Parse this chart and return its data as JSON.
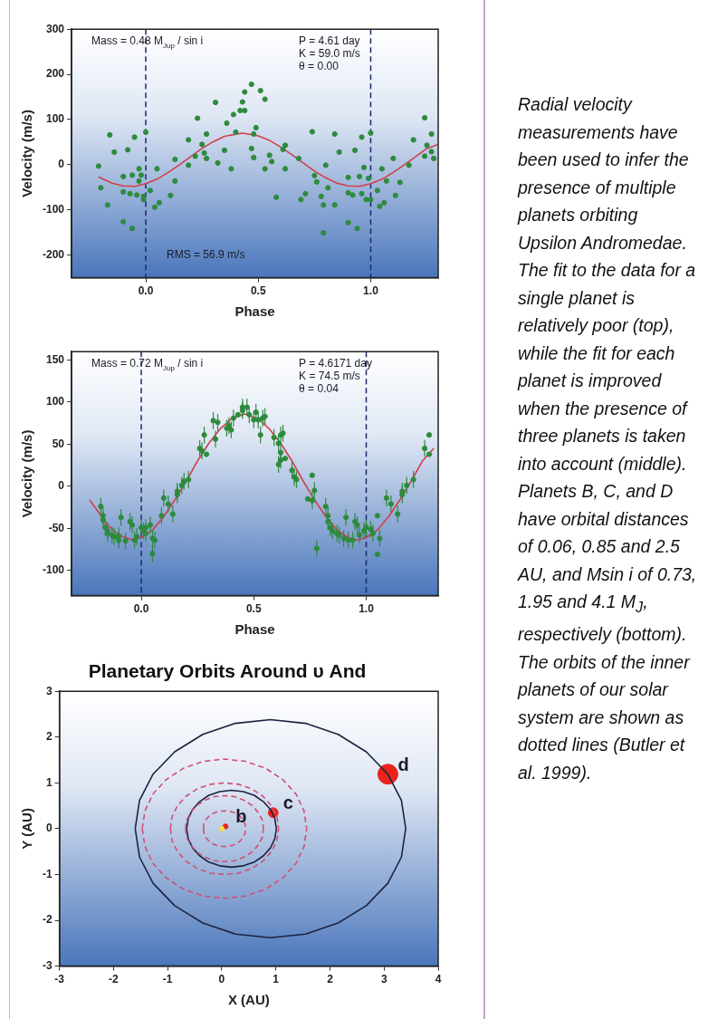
{
  "chart_data": [
    {
      "type": "scatter",
      "xlabel": "Phase",
      "ylabel": "Velocity (m/s)",
      "annotations": [
        "Mass = 0.48 M$_{Jup}$ / sin i",
        "P = 4.61 day",
        "K = 59.0 m/s",
        "θ = 0.00",
        "RMS = 56.9 m/s"
      ],
      "xlim": [
        -0.33,
        1.3
      ],
      "ylim": [
        -250,
        300
      ],
      "xticks": [
        {
          "value": 0,
          "label": "0.0"
        },
        {
          "value": 0.5,
          "label": "0.5"
        },
        {
          "value": 1,
          "label": "1.0"
        }
      ],
      "yticks": [
        -200,
        -100,
        0,
        100,
        200,
        300
      ],
      "grid": false,
      "legend": false,
      "ref_lines": [
        {
          "axis": "x",
          "value": 0,
          "color": "#1a2a6c",
          "line_style": "dashed"
        },
        {
          "axis": "x",
          "value": 1,
          "color": "#1a2a6c",
          "line_style": "dashed"
        }
      ],
      "series": [
        {
          "type": "scatter",
          "marker": "circle",
          "color": "#2e8b3e",
          "x": [
            -0.21,
            -0.2,
            -0.17,
            -0.16,
            -0.14,
            -0.1,
            -0.1,
            -0.1,
            -0.08,
            -0.07,
            -0.06,
            -0.05,
            -0.06,
            -0.04,
            -0.03,
            -0.03,
            -0.02,
            -0.01,
            0,
            -0.01,
            0.02,
            0.04,
            0.05,
            0.06,
            0.11,
            0.13,
            0.13,
            0.19,
            0.19,
            0.22,
            0.23,
            0.25,
            0.26,
            0.27,
            0.27,
            0.31,
            0.32,
            0.35,
            0.36,
            0.38,
            0.39,
            0.4,
            0.42,
            0.43,
            0.44,
            0.44,
            0.47,
            0.47,
            0.48,
            0.48,
            0.49,
            0.51,
            0.53,
            0.53,
            0.55,
            0.56,
            0.58,
            0.61,
            0.62,
            0.62,
            0.68,
            0.69,
            0.71,
            0.74,
            0.75,
            0.76,
            0.78,
            0.79,
            0.79,
            0.8,
            0.81,
            0.84,
            0.84,
            0.86,
            0.9,
            0.9,
            0.9,
            0.92,
            0.93,
            0.94,
            0.95,
            0.96,
            0.96,
            0.97,
            0.98,
            0.99,
            1.0,
            1.0,
            1.03,
            1.04,
            1.05,
            1.06,
            1.07,
            1.1,
            1.11,
            1.13,
            1.17,
            1.19,
            1.24,
            1.24,
            1.25,
            1.27,
            1.27,
            1.28
          ],
          "values": [
            -3,
            -51,
            -89,
            66,
            28,
            -26,
            -60,
            -126,
            33,
            -64,
            -141,
            61,
            -23,
            -67,
            -9,
            -36,
            -23,
            -70,
            72,
            -77,
            -57,
            -94,
            -9,
            -84,
            -68,
            12,
            -36,
            55,
            -1,
            19,
            103,
            45,
            26,
            68,
            14,
            138,
            4,
            32,
            92,
            -9,
            111,
            72,
            120,
            139,
            161,
            120,
            178,
            36,
            16,
            68,
            82,
            164,
            145,
            -9,
            21,
            7,
            -72,
            34,
            43,
            -9,
            14,
            -77,
            -64,
            73,
            -24,
            -38,
            -70,
            -89,
            -151,
            -1,
            -51,
            -89,
            68,
            28,
            -128,
            -28,
            -62,
            -67,
            32,
            -141,
            -26,
            -64,
            61,
            -6,
            -77,
            -30,
            70,
            -77,
            -57,
            -92,
            -9,
            -84,
            -36,
            14,
            -68,
            -39,
            -1,
            55,
            104,
            19,
            43,
            68,
            29,
            14
          ]
        },
        {
          "type": "line",
          "marker": "none",
          "color": "#d0404a",
          "x": [
            -0.21,
            -0.15,
            -0.1,
            -0.05,
            0,
            0.05,
            0.1,
            0.15,
            0.2,
            0.25,
            0.3,
            0.35,
            0.43,
            0.5,
            0.55,
            0.6,
            0.65,
            0.7,
            0.75,
            0.8,
            0.85,
            0.9,
            0.95,
            1.0,
            1.05,
            1.1,
            1.15,
            1.2,
            1.25,
            1.3
          ],
          "values": [
            -27,
            -41,
            -47,
            -48,
            -42,
            -32,
            -17,
            0,
            18,
            36,
            51,
            63,
            70,
            64,
            54,
            39,
            22,
            4,
            -14,
            -29,
            -41,
            -47,
            -48,
            -42,
            -32,
            -17,
            0,
            18,
            36,
            45
          ]
        }
      ]
    },
    {
      "type": "scatter",
      "xlabel": "Phase",
      "ylabel": "Velocity (m/s)",
      "annotations": [
        "Mass = 0.72 M$_{Jup}$ / sin i",
        "P = 4.6171 day",
        "K = 74.5 m/s",
        "θ = 0.04"
      ],
      "xlim": [
        -0.31,
        1.32
      ],
      "ylim": [
        -130,
        160
      ],
      "xticks": [
        {
          "value": 0,
          "label": "0.0"
        },
        {
          "value": 0.5,
          "label": "0.5"
        },
        {
          "value": 1,
          "label": "1.0"
        }
      ],
      "yticks": [
        -100,
        -50,
        0,
        50,
        100,
        150
      ],
      "grid": false,
      "legend": false,
      "ref_lines": [
        {
          "axis": "x",
          "value": 0,
          "color": "#1a2a6c",
          "line_style": "dashed"
        },
        {
          "axis": "x",
          "value": 1,
          "color": "#1a2a6c",
          "line_style": "dashed"
        }
      ],
      "series": [
        {
          "type": "scatter",
          "marker": "circle",
          "color": "#2e8b3e",
          "x": [
            -0.18,
            -0.17,
            -0.17,
            -0.16,
            -0.15,
            -0.15,
            -0.13,
            -0.12,
            -0.1,
            -0.1,
            -0.09,
            -0.07,
            -0.05,
            -0.04,
            -0.03,
            -0.02,
            0,
            0.01,
            0.02,
            0.02,
            0.04,
            0.05,
            0.05,
            0.06,
            0.09,
            0.1,
            0.12,
            0.14,
            0.16,
            0.16,
            0.18,
            0.19,
            0.21,
            0.26,
            0.27,
            0.28,
            0.29,
            0.32,
            0.33,
            0.34,
            0.38,
            0.39,
            0.4,
            0.41,
            0.43,
            0.45,
            0.45,
            0.47,
            0.48,
            0.5,
            0.51,
            0.52,
            0.53,
            0.54,
            0.55,
            0.59,
            0.61,
            0.62,
            0.63,
            0.61,
            0.62,
            0.62,
            0.64,
            0.67,
            0.68,
            0.69,
            0.74,
            0.76,
            0.76,
            0.77,
            0.78,
            0.82,
            0.83,
            0.83,
            0.84,
            0.85,
            0.87,
            0.88,
            0.9,
            0.91,
            0.92,
            0.94,
            0.95,
            0.96,
            0.97,
            0.99,
            1.0,
            1.02,
            1.03,
            1.05,
            1.05,
            1.06,
            1.09,
            1.11,
            1.14,
            1.16,
            1.16,
            1.18,
            1.21,
            1.26,
            1.28,
            1.28
          ],
          "values": [
            -24,
            -35,
            -40,
            -49,
            -56,
            -53,
            -58,
            -60,
            -64,
            -59,
            -37,
            -65,
            -42,
            -46,
            -64,
            -60,
            -49,
            -53,
            -56,
            -49,
            -46,
            -80,
            -62,
            -64,
            -35,
            -14,
            -21,
            -33,
            -6,
            -10,
            1,
            6,
            8,
            45,
            42,
            61,
            38,
            78,
            56,
            76,
            69,
            72,
            67,
            81,
            85,
            94,
            90,
            94,
            85,
            79,
            88,
            79,
            61,
            81,
            83,
            58,
            51,
            61,
            63,
            26,
            40,
            31,
            33,
            19,
            11,
            8,
            -15,
            -17,
            13,
            -5,
            -74,
            -24,
            -35,
            -42,
            -49,
            -53,
            -56,
            -58,
            -62,
            -37,
            -64,
            -64,
            -42,
            -46,
            -58,
            -53,
            -49,
            -51,
            -56,
            -81,
            -35,
            -62,
            -14,
            -21,
            -33,
            -6,
            -10,
            1,
            8,
            45,
            61,
            38
          ],
          "errors": [
            10,
            10,
            10,
            10,
            10,
            10,
            10,
            10,
            10,
            10,
            10,
            10,
            10,
            10,
            10,
            10,
            10,
            10,
            10,
            10,
            10,
            10,
            10,
            10,
            10,
            10,
            10,
            10,
            10,
            10,
            10,
            10,
            10,
            10,
            10,
            10,
            null,
            10,
            10,
            10,
            10,
            10,
            10,
            10,
            null,
            10,
            10,
            10,
            10,
            10,
            10,
            10,
            10,
            10,
            10,
            10,
            10,
            10,
            10,
            10,
            10,
            10,
            null,
            10,
            10,
            10,
            null,
            10,
            null,
            10,
            10,
            10,
            10,
            10,
            10,
            10,
            10,
            10,
            10,
            10,
            10,
            10,
            10,
            10,
            10,
            10,
            10,
            10,
            10,
            null,
            null,
            10,
            10,
            10,
            10,
            10,
            10,
            10,
            10,
            10,
            null,
            null
          ]
        },
        {
          "type": "line",
          "marker": "none",
          "color": "#d0404a",
          "x": [
            -0.23,
            -0.15,
            -0.1,
            -0.04,
            0,
            0.05,
            0.1,
            0.15,
            0.2,
            0.25,
            0.3,
            0.35,
            0.4,
            0.46,
            0.52,
            0.57,
            0.62,
            0.67,
            0.72,
            0.77,
            0.82,
            0.87,
            0.92,
            0.96,
            1.0,
            1.05,
            1.1,
            1.15,
            1.2,
            1.25,
            1.3
          ],
          "values": [
            -16,
            -46,
            -58,
            -64,
            -61,
            -52,
            -36,
            -16,
            6,
            30,
            51,
            68,
            80,
            86,
            80,
            68,
            51,
            30,
            6,
            -16,
            -36,
            -52,
            -61,
            -64,
            -61,
            -52,
            -36,
            -16,
            6,
            30,
            45
          ]
        }
      ]
    },
    {
      "type": "line",
      "title": "Planetary Orbits Around υ And",
      "xlabel": "X (AU)",
      "ylabel": "Y (AU)",
      "xlim": [
        -3,
        4
      ],
      "ylim": [
        -3,
        3
      ],
      "xticks": [
        -3,
        -2,
        -1,
        0,
        1,
        2,
        3,
        4
      ],
      "yticks": [
        -3,
        -2,
        -1,
        0,
        1,
        2,
        3
      ],
      "grid": false,
      "legend": false,
      "annotations": [
        {
          "text": "b",
          "x": 0.07,
          "y": 0.05
        },
        {
          "text": "c",
          "x": 0.95,
          "y": 0.35
        },
        {
          "text": "d",
          "x": 3.07,
          "y": 1.19
        }
      ],
      "series": [
        {
          "type": "line",
          "marker": "none",
          "color": "#d05070",
          "line_style": "dashed",
          "x": [
            -0.34,
            -0.33,
            -0.29,
            -0.23,
            -0.15,
            -0.05,
            0.05,
            0.15,
            0.25,
            0.33,
            0.39,
            0.43,
            0.44,
            null,
            -0.34,
            -0.33,
            -0.29,
            -0.23,
            -0.15,
            -0.05,
            0.05,
            0.15,
            0.25,
            0.33,
            0.39,
            0.43,
            0.44
          ],
          "values": [
            0,
            0.1,
            0.2,
            0.28,
            0.34,
            0.38,
            0.39,
            0.38,
            0.34,
            0.28,
            0.2,
            0.1,
            0,
            null,
            0,
            -0.1,
            -0.2,
            -0.28,
            -0.34,
            -0.38,
            -0.39,
            -0.38,
            -0.34,
            -0.28,
            -0.2,
            -0.1,
            0
          ]
        },
        {
          "type": "line",
          "marker": "none",
          "color": "#d05070",
          "line_style": "dashed",
          "x": [
            -0.67,
            -0.65,
            -0.57,
            -0.46,
            -0.31,
            -0.14,
            0.05,
            0.24,
            0.41,
            0.56,
            0.67,
            0.75,
            0.77,
            null,
            -0.67,
            -0.65,
            -0.57,
            -0.46,
            -0.31,
            -0.14,
            0.05,
            0.24,
            0.41,
            0.56,
            0.67,
            0.75,
            0.77
          ],
          "values": [
            0,
            0.19,
            0.36,
            0.51,
            0.62,
            0.7,
            0.72,
            0.7,
            0.62,
            0.51,
            0.36,
            0.19,
            0,
            null,
            0,
            -0.19,
            -0.36,
            -0.51,
            -0.62,
            -0.7,
            -0.72,
            -0.7,
            -0.62,
            -0.51,
            -0.36,
            -0.19,
            0
          ]
        },
        {
          "type": "line",
          "marker": "none",
          "color": "#d05070",
          "line_style": "dashed",
          "x": [
            -0.95,
            -0.92,
            -0.82,
            -0.66,
            -0.45,
            -0.21,
            0.05,
            0.31,
            0.55,
            0.76,
            0.92,
            1.02,
            1.05,
            null,
            -0.95,
            -0.92,
            -0.82,
            -0.66,
            -0.45,
            -0.21,
            0.05,
            0.31,
            0.55,
            0.76,
            0.92,
            1.02,
            1.05
          ],
          "values": [
            0,
            0.26,
            0.5,
            0.71,
            0.87,
            0.97,
            1,
            0.97,
            0.87,
            0.71,
            0.5,
            0.26,
            0,
            null,
            0,
            -0.26,
            -0.5,
            -0.71,
            -0.87,
            -0.97,
            -1,
            -0.97,
            -0.87,
            -0.71,
            -0.5,
            -0.26,
            0
          ]
        },
        {
          "type": "line",
          "marker": "none",
          "color": "#d05070",
          "line_style": "dashed",
          "x": [
            -1.47,
            -1.42,
            -1.27,
            -1.03,
            -0.71,
            -0.34,
            0.05,
            0.44,
            0.81,
            1.13,
            1.37,
            1.52,
            1.57,
            null,
            -1.47,
            -1.42,
            -1.27,
            -1.03,
            -0.71,
            -0.34,
            0.05,
            0.44,
            0.81,
            1.13,
            1.37,
            1.52,
            1.57
          ],
          "values": [
            0,
            0.39,
            0.76,
            1.07,
            1.32,
            1.47,
            1.52,
            1.47,
            1.32,
            1.07,
            0.76,
            0.39,
            0,
            null,
            0,
            -0.39,
            -0.76,
            -1.07,
            -1.32,
            -1.47,
            -1.52,
            -1.47,
            -1.32,
            -1.07,
            -0.76,
            -0.39,
            0
          ]
        },
        {
          "type": "line",
          "marker": "none",
          "color": "#1c2340",
          "line_style": "solid",
          "x": [
            -0.65,
            -0.62,
            -0.54,
            -0.41,
            -0.24,
            -0.04,
            0.18,
            0.4,
            0.6,
            0.77,
            0.9,
            0.98,
            1.01,
            null,
            -0.65,
            -0.62,
            -0.54,
            -0.41,
            -0.24,
            -0.04,
            0.18,
            0.4,
            0.6,
            0.77,
            0.9,
            0.98,
            1.01
          ],
          "values": [
            0,
            0.22,
            0.42,
            0.59,
            0.73,
            0.81,
            0.84,
            0.81,
            0.73,
            0.59,
            0.42,
            0.22,
            0,
            null,
            0,
            -0.22,
            -0.42,
            -0.59,
            -0.73,
            -0.81,
            -0.84,
            -0.81,
            -0.73,
            -0.59,
            -0.42,
            -0.22,
            0
          ]
        },
        {
          "type": "line",
          "marker": "none",
          "color": "#1c2340",
          "line_style": "solid",
          "x": [
            -1.6,
            -1.52,
            -1.27,
            -0.87,
            -0.35,
            0.25,
            0.9,
            1.55,
            2.15,
            2.67,
            3.07,
            3.32,
            3.4,
            null,
            -1.6,
            -1.52,
            -1.27,
            -0.87,
            -0.35,
            0.25,
            0.9,
            1.55,
            2.15,
            2.67,
            3.07,
            3.32,
            3.4
          ],
          "values": [
            0,
            0.62,
            1.19,
            1.68,
            2.06,
            2.3,
            2.38,
            2.3,
            2.06,
            1.68,
            1.19,
            0.62,
            0,
            null,
            0,
            -0.62,
            -1.19,
            -1.68,
            -2.06,
            -2.3,
            -2.38,
            -2.3,
            -2.06,
            -1.68,
            -1.19,
            -0.62,
            0
          ]
        },
        {
          "type": "scatter",
          "color": "#f0e050",
          "marker": "circle",
          "x": [
            0
          ],
          "values": [
            0
          ]
        },
        {
          "type": "bubble",
          "color": "#e8231a",
          "x": [
            0.07,
            0.95,
            3.07
          ],
          "values": [
            0.05,
            0.35,
            1.19
          ],
          "sizes": [
            0.06,
            0.24,
            1
          ]
        }
      ]
    },
    {
      "type": "other",
      "annotations": [
        "Radial velocity measurements have been used to infer the presence of multiple planets orbiting Upsilon Andromedae. The fit to the data for a single planet is relatively poor (top), while the fit for each planet is improved when the presence of three planets is taken into account (middle). Planets B, C, and D have orbital distances of 0.06, 0.85 and 2.5 AU, and Msin i of 0.73, 1.95 and 4.1 M$_{J}$, respectively (bottom). The orbits of the inner planets of our solar system are shown as dotted lines (Butler et al. 1999)."
      ]
    }
  ]
}
